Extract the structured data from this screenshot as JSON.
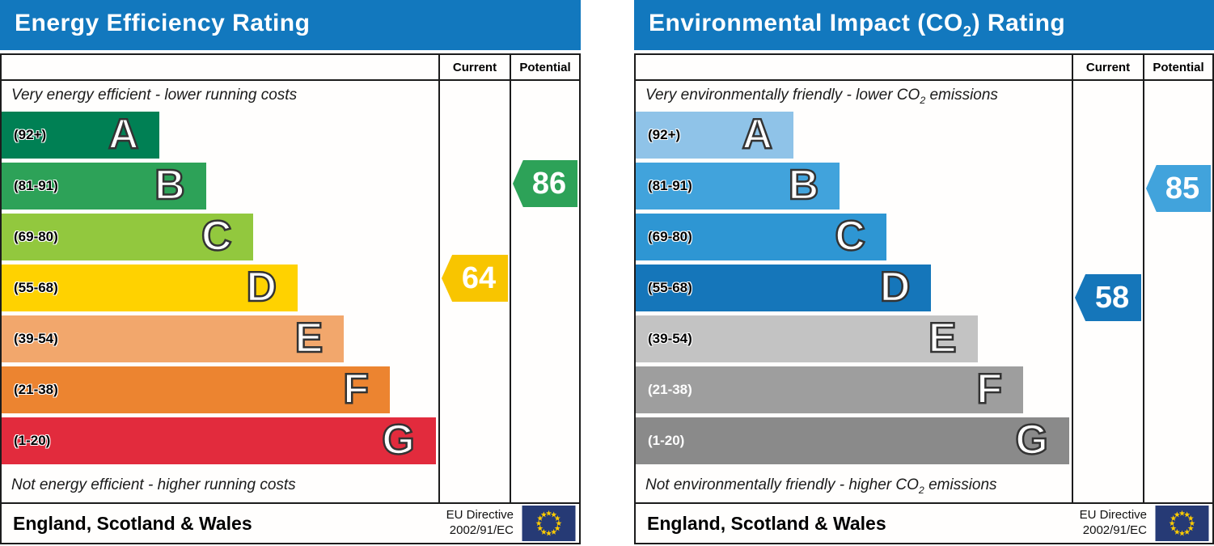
{
  "chart_data": [
    {
      "type": "bar",
      "orientation": "horizontal",
      "title": "Energy Efficiency Rating",
      "title_parts": {
        "pre": "Energy Efficiency Rating",
        "sub": "",
        "post": ""
      },
      "header_color": "#1278be",
      "top_note_parts": {
        "pre": "Very energy efficient - lower running costs",
        "sub": "",
        "post": ""
      },
      "bottom_note_parts": {
        "pre": "Not energy efficient - higher running costs",
        "sub": "",
        "post": ""
      },
      "bands": [
        {
          "letter": "A",
          "range_label": "(92+)",
          "min": 92,
          "max": 100,
          "width_pct": 36.2,
          "color": "#008054",
          "label_class": "dark"
        },
        {
          "letter": "B",
          "range_label": "(81-91)",
          "min": 81,
          "max": 91,
          "width_pct": 46.8,
          "color": "#2da258",
          "label_class": "dark"
        },
        {
          "letter": "C",
          "range_label": "(69-80)",
          "min": 69,
          "max": 80,
          "width_pct": 57.5,
          "color": "#92c83e",
          "label_class": "dark"
        },
        {
          "letter": "D",
          "range_label": "(55-68)",
          "min": 55,
          "max": 68,
          "width_pct": 67.8,
          "color": "#ffd200",
          "label_class": "dark"
        },
        {
          "letter": "E",
          "range_label": "(39-54)",
          "min": 39,
          "max": 54,
          "width_pct": 78.4,
          "color": "#f2a76c",
          "label_class": "dark"
        },
        {
          "letter": "F",
          "range_label": "(21-38)",
          "min": 21,
          "max": 38,
          "width_pct": 88.9,
          "color": "#ec8430",
          "label_class": "dark"
        },
        {
          "letter": "G",
          "range_label": "(1-20)",
          "min": 1,
          "max": 20,
          "width_pct": 99.4,
          "color": "#e22b3d",
          "label_class": "dark"
        }
      ],
      "current": {
        "label": "Current",
        "value": 64,
        "color": "#f8c500"
      },
      "potential": {
        "label": "Potential",
        "value": 86,
        "color": "#2da258"
      },
      "footer": {
        "region": "England, Scotland & Wales",
        "directive_line1": "EU Directive",
        "directive_line2": "2002/91/EC",
        "flag_bg": "#263a75",
        "flag_star": "#ffcc00"
      }
    },
    {
      "type": "bar",
      "orientation": "horizontal",
      "title": "Environmental Impact (CO2) Rating",
      "title_parts": {
        "pre": "Environmental Impact (CO",
        "sub": "2",
        "post": ") Rating"
      },
      "header_color": "#1278be",
      "top_note_parts": {
        "pre": "Very environmentally friendly - lower CO",
        "sub": "2",
        "post": " emissions"
      },
      "bottom_note_parts": {
        "pre": "Not environmentally friendly - higher CO",
        "sub": "2",
        "post": " emissions"
      },
      "bands": [
        {
          "letter": "A",
          "range_label": "(92+)",
          "min": 92,
          "max": 100,
          "width_pct": 36.2,
          "color": "#8fc3e8",
          "label_class": "dark"
        },
        {
          "letter": "B",
          "range_label": "(81-91)",
          "min": 81,
          "max": 91,
          "width_pct": 46.8,
          "color": "#41a3dc",
          "label_class": "dark"
        },
        {
          "letter": "C",
          "range_label": "(69-80)",
          "min": 69,
          "max": 80,
          "width_pct": 57.5,
          "color": "#2e96d3",
          "label_class": "dark"
        },
        {
          "letter": "D",
          "range_label": "(55-68)",
          "min": 55,
          "max": 68,
          "width_pct": 67.8,
          "color": "#1576ba",
          "label_class": "dark"
        },
        {
          "letter": "E",
          "range_label": "(39-54)",
          "min": 39,
          "max": 54,
          "width_pct": 78.4,
          "color": "#c3c3c3",
          "label_class": "dark"
        },
        {
          "letter": "F",
          "range_label": "(21-38)",
          "min": 21,
          "max": 38,
          "width_pct": 88.9,
          "color": "#9e9e9e",
          "label_class": "light"
        },
        {
          "letter": "G",
          "range_label": "(1-20)",
          "min": 1,
          "max": 20,
          "width_pct": 99.4,
          "color": "#8a8a8a",
          "label_class": "light"
        }
      ],
      "current": {
        "label": "Current",
        "value": 58,
        "color": "#1576ba"
      },
      "potential": {
        "label": "Potential",
        "value": 85,
        "color": "#41a3dc"
      },
      "footer": {
        "region": "England, Scotland & Wales",
        "directive_line1": "EU Directive",
        "directive_line2": "2002/91/EC",
        "flag_bg": "#263a75",
        "flag_star": "#ffcc00"
      }
    }
  ]
}
